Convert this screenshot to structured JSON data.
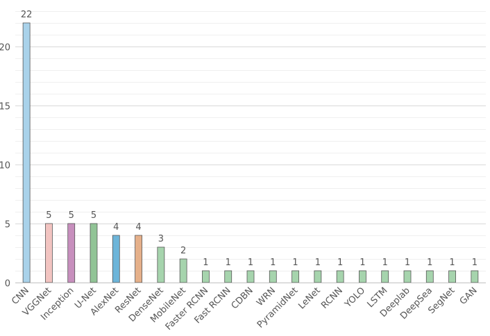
{
  "chart_data": {
    "type": "bar",
    "title": "",
    "xlabel": "",
    "ylabel": "",
    "categories": [
      "CNN",
      "VGGNet",
      "Inception",
      "U-Net",
      "AlexNet",
      "ResNet",
      "DenseNet",
      "MobileNet",
      "Faster RCNN",
      "Fast RCNN",
      "CDBN",
      "WRN",
      "PyramidNet",
      "LeNet",
      "RCNN",
      "YOLO",
      "LSTM",
      "Deeplab",
      "DeepSea",
      "SegNet",
      "GAN"
    ],
    "values": [
      22,
      5,
      5,
      5,
      4,
      4,
      3,
      2,
      1,
      1,
      1,
      1,
      1,
      1,
      1,
      1,
      1,
      1,
      1,
      1,
      1
    ],
    "data_labels": [
      "22",
      "5",
      "5",
      "5",
      "4",
      "4",
      "3",
      "2",
      "1",
      "1",
      "1",
      "1",
      "1",
      "1",
      "1",
      "1",
      "1",
      "1",
      "1",
      "1",
      "1"
    ],
    "bar_colors": [
      "#a9d2ea",
      "#f2c4c1",
      "#c78fbd",
      "#91c496",
      "#6db5d9",
      "#e5b08a",
      "#a6d4ad",
      "#a6d4ad",
      "#a6d4ad",
      "#a6d4ad",
      "#a6d4ad",
      "#a6d4ad",
      "#a6d4ad",
      "#a6d4ad",
      "#a6d4ad",
      "#a6d4ad",
      "#a6d4ad",
      "#a6d4ad",
      "#a6d4ad",
      "#a6d4ad",
      "#a6d4ad"
    ],
    "ylim": [
      0,
      23
    ],
    "y_ticks": [
      0,
      5,
      10,
      15,
      20
    ],
    "y_tick_labels": [
      "0",
      "5",
      "10",
      "15",
      "20"
    ],
    "y_minor_step": 1,
    "grid": true,
    "legend": "none"
  }
}
